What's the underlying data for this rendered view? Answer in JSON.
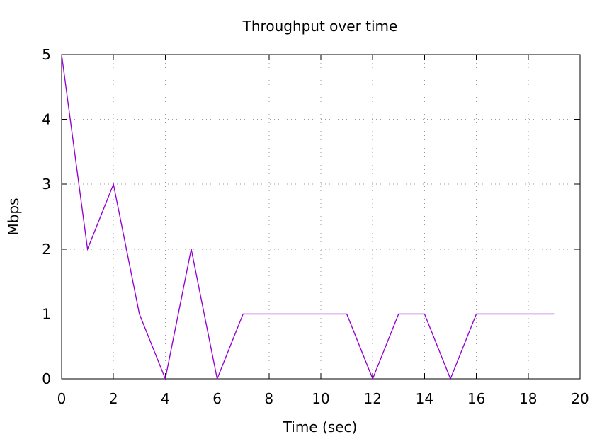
{
  "chart_data": {
    "type": "line",
    "title": "Throughput over time",
    "xlabel": "Time (sec)",
    "ylabel": "Mbps",
    "xlim": [
      0,
      20
    ],
    "ylim": [
      0,
      5
    ],
    "x_ticks": [
      0,
      2,
      4,
      6,
      8,
      10,
      12,
      14,
      16,
      18,
      20
    ],
    "y_ticks": [
      0,
      1,
      2,
      3,
      4,
      5
    ],
    "grid": true,
    "legend": "none",
    "series": [
      {
        "color": "#9400d3",
        "x": [
          0,
          1,
          2,
          3,
          4,
          5,
          6,
          7,
          8,
          9,
          10,
          11,
          12,
          13,
          14,
          15,
          16,
          17,
          18,
          19
        ],
        "y": [
          5,
          2,
          3,
          1,
          0,
          2,
          0,
          1,
          1,
          1,
          1,
          1,
          0,
          1,
          1,
          0,
          1,
          1,
          1,
          1
        ]
      }
    ]
  }
}
